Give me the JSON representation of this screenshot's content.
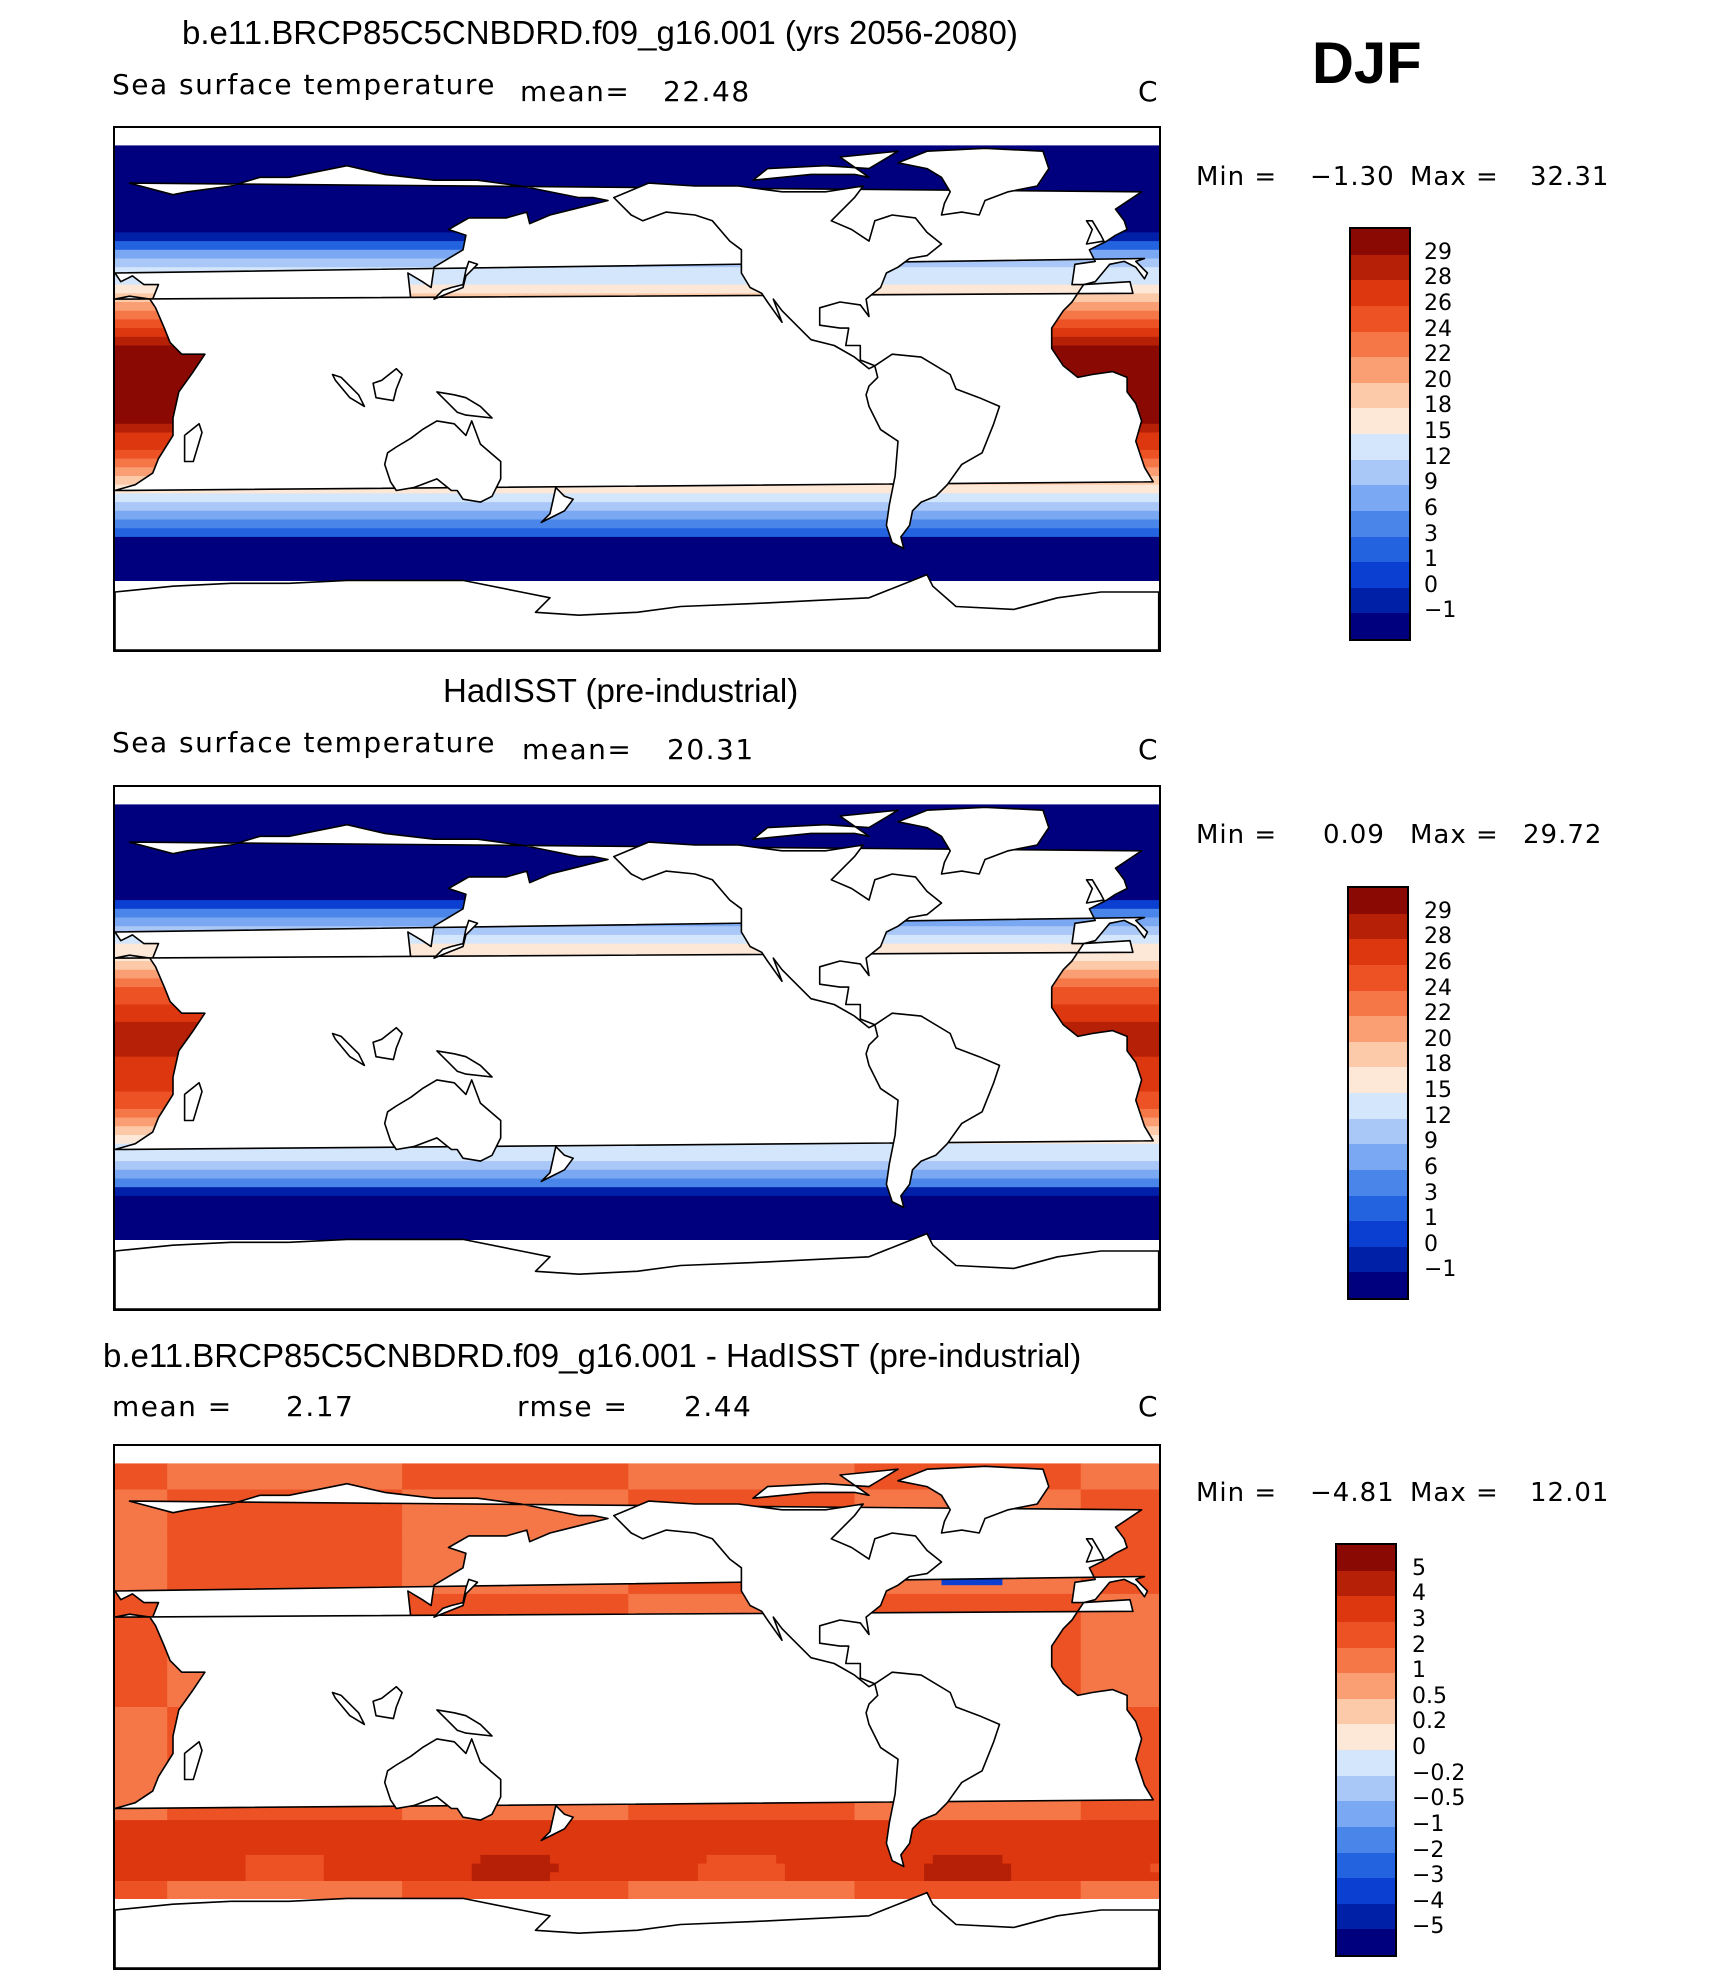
{
  "season": "DJF",
  "colors": {
    "land": "#ffffff",
    "coast": "#000000",
    "full_palette": [
      "#00007f",
      "#0020a8",
      "#0b3fd1",
      "#2363e0",
      "#4a86ea",
      "#7aa8f2",
      "#a9c7f7",
      "#d4e6fb",
      "#fde8d8",
      "#fccaa9",
      "#fa9f73",
      "#f57748",
      "#ec5224",
      "#dd3710",
      "#b62006",
      "#8a0a03"
    ],
    "diff_palette": [
      "#00007f",
      "#0020a8",
      "#0b3fd1",
      "#2363e0",
      "#4a86ea",
      "#7aa8f2",
      "#a9c7f7",
      "#d4e6fb",
      "#fde8d8",
      "#fccaa9",
      "#fa9f73",
      "#f57748",
      "#ec5224",
      "#dd3710",
      "#b62006",
      "#8a0a03"
    ]
  },
  "panels": [
    {
      "title": "b.e11.BRCP85C5CNBDRD.f09_g16.001 (yrs 2056-2080)",
      "variable": "Sea surface temperature",
      "mean_label": "mean=",
      "mean_value": "22.48",
      "units": "C",
      "min_label": "Min =",
      "min_value": "−1.30",
      "max_label": "Max =",
      "max_value": "32.31",
      "colorbar_labels": [
        "29",
        "28",
        "26",
        "24",
        "22",
        "20",
        "18",
        "15",
        "12",
        "9",
        "6",
        "3",
        "1",
        "0",
        "−1"
      ],
      "field": "model"
    },
    {
      "title": "HadISST (pre-industrial)",
      "variable": "Sea surface temperature",
      "mean_label": "mean=",
      "mean_value": "20.31",
      "units": "C",
      "min_label": "Min =",
      "min_value": "0.09",
      "max_label": "Max =",
      "max_value": "29.72",
      "colorbar_labels": [
        "29",
        "28",
        "26",
        "24",
        "22",
        "20",
        "18",
        "15",
        "12",
        "9",
        "6",
        "3",
        "1",
        "0",
        "−1"
      ],
      "field": "obs"
    },
    {
      "title": "b.e11.BRCP85C5CNBDRD.f09_g16.001 - HadISST (pre-industrial)",
      "mean_label": "mean =",
      "mean_value": "2.17",
      "rmse_label": "rmse =",
      "rmse_value": "2.44",
      "units": "C",
      "min_label": "Min =",
      "min_value": "−4.81",
      "max_label": "Max =",
      "max_value": "12.01",
      "colorbar_labels": [
        "5",
        "4",
        "3",
        "2",
        "1",
        "0.5",
        "0.2",
        "0",
        "−0.2",
        "−0.5",
        "−1",
        "−2",
        "−3",
        "−4",
        "−5"
      ],
      "field": "diff"
    }
  ]
}
